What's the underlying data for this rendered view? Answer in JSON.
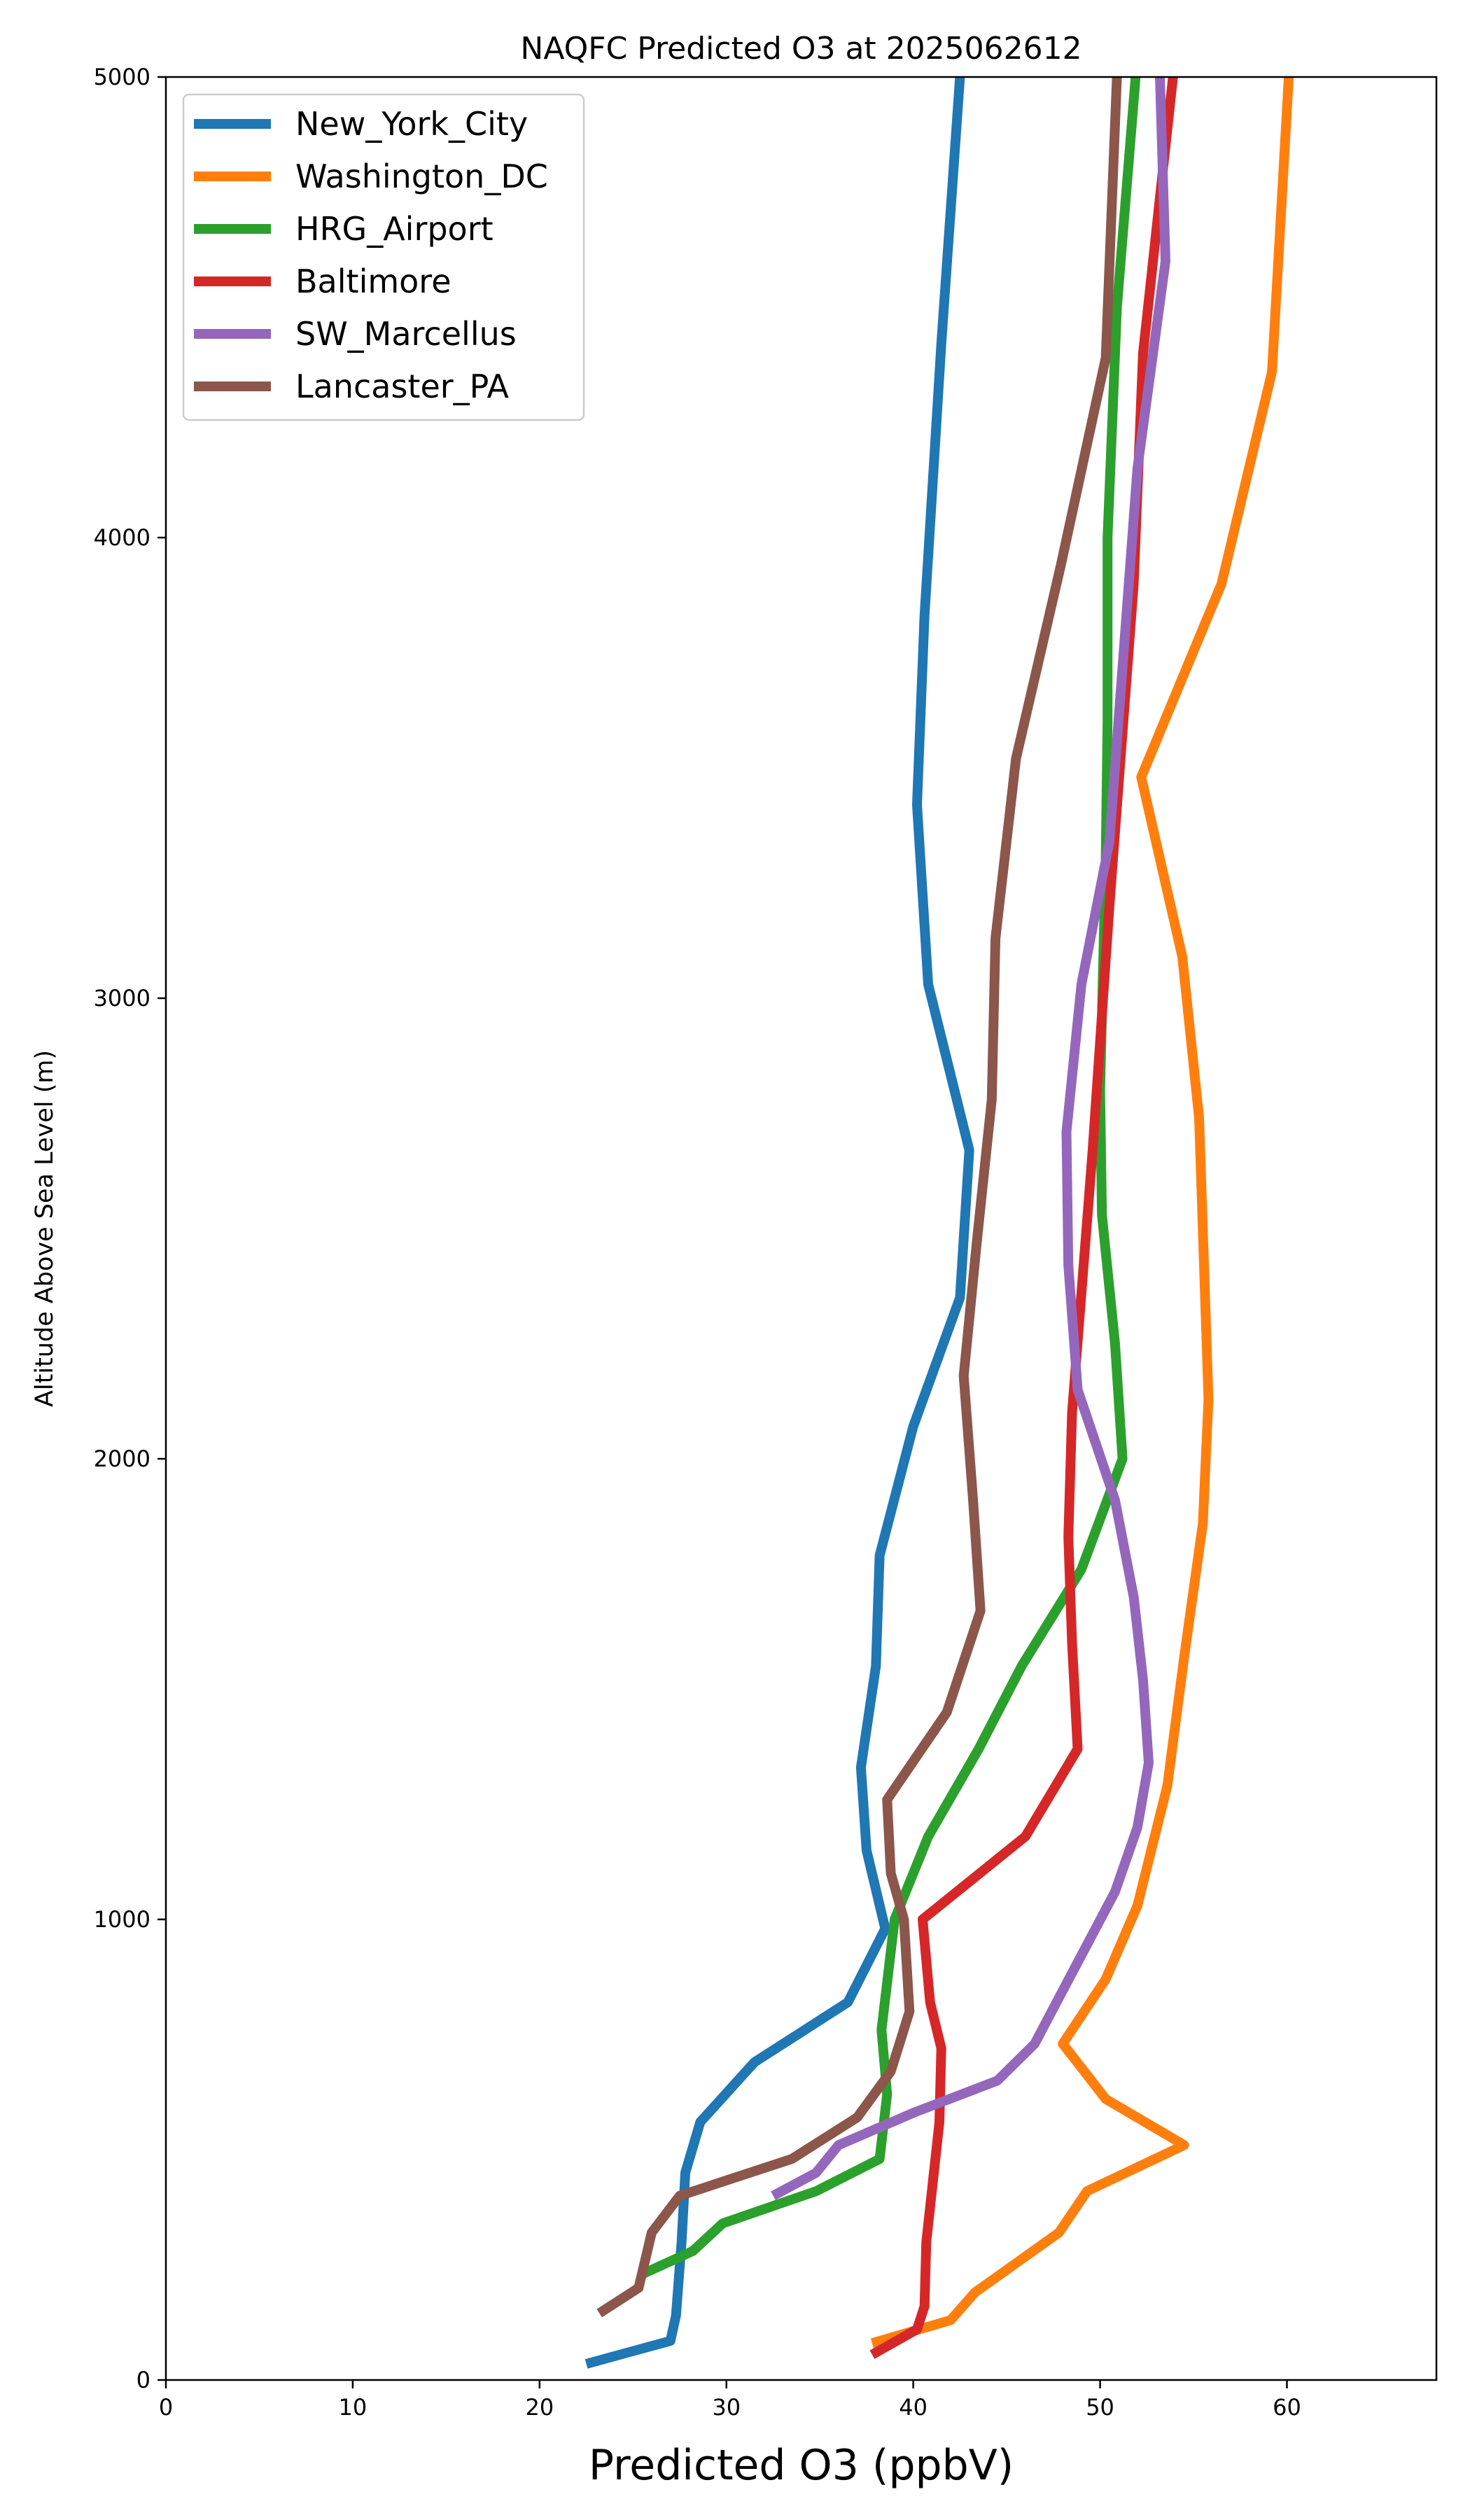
{
  "chart_data": {
    "type": "line",
    "title": "NAQFC Predicted O3 at 2025062612",
    "xlabel": "Predicted O3 (ppbV)",
    "ylabel": "Altitude Above Sea Level (m)",
    "xlim": [
      0,
      68
    ],
    "ylim": [
      0,
      5000
    ],
    "xticks": [
      0,
      10,
      20,
      30,
      40,
      50,
      60
    ],
    "yticks": [
      0,
      1000,
      2000,
      3000,
      4000,
      5000
    ],
    "grid": false,
    "legend_position": "upper-left",
    "series": [
      {
        "name": "New_York_City",
        "color": "#1f77b4",
        "points": [
          [
            22.5,
            35
          ],
          [
            27.0,
            85
          ],
          [
            27.3,
            140
          ],
          [
            27.6,
            300
          ],
          [
            27.8,
            450
          ],
          [
            28.6,
            560
          ],
          [
            31.5,
            690
          ],
          [
            36.5,
            820
          ],
          [
            38.5,
            980
          ],
          [
            37.5,
            1150
          ],
          [
            37.2,
            1330
          ],
          [
            38.0,
            1550
          ],
          [
            38.2,
            1790
          ],
          [
            40.0,
            2070
          ],
          [
            42.5,
            2350
          ],
          [
            43.0,
            2670
          ],
          [
            40.8,
            3030
          ],
          [
            40.2,
            3420
          ],
          [
            40.6,
            3830
          ],
          [
            41.5,
            4420
          ],
          [
            42.5,
            5000
          ]
        ]
      },
      {
        "name": "Washington_DC",
        "color": "#ff7f0e",
        "points": [
          [
            37.8,
            80
          ],
          [
            42.0,
            130
          ],
          [
            43.3,
            190
          ],
          [
            47.8,
            320
          ],
          [
            49.3,
            410
          ],
          [
            54.5,
            510
          ],
          [
            50.3,
            610
          ],
          [
            48.0,
            730
          ],
          [
            50.3,
            870
          ],
          [
            52.0,
            1030
          ],
          [
            53.6,
            1290
          ],
          [
            54.5,
            1570
          ],
          [
            55.5,
            1860
          ],
          [
            55.8,
            2130
          ],
          [
            55.3,
            2740
          ],
          [
            54.4,
            3090
          ],
          [
            52.2,
            3480
          ],
          [
            56.5,
            3900
          ],
          [
            59.2,
            4360
          ],
          [
            60.1,
            5000
          ]
        ]
      },
      {
        "name": "HRG_Airport",
        "color": "#2ca02c",
        "points": [
          [
            25.5,
            230
          ],
          [
            28.2,
            280
          ],
          [
            29.8,
            340
          ],
          [
            34.8,
            410
          ],
          [
            38.2,
            480
          ],
          [
            38.6,
            620
          ],
          [
            38.3,
            760
          ],
          [
            39.0,
            1000
          ],
          [
            40.8,
            1180
          ],
          [
            43.5,
            1370
          ],
          [
            45.8,
            1550
          ],
          [
            49.0,
            1760
          ],
          [
            51.2,
            2000
          ],
          [
            50.8,
            2250
          ],
          [
            50.1,
            2530
          ],
          [
            50.0,
            2800
          ],
          [
            50.3,
            3300
          ],
          [
            50.4,
            3600
          ],
          [
            50.4,
            4000
          ],
          [
            50.9,
            4500
          ],
          [
            51.9,
            5000
          ]
        ]
      },
      {
        "name": "Baltimore",
        "color": "#d62728",
        "points": [
          [
            37.8,
            55
          ],
          [
            40.2,
            110
          ],
          [
            40.6,
            160
          ],
          [
            40.7,
            300
          ],
          [
            41.4,
            560
          ],
          [
            41.5,
            720
          ],
          [
            40.9,
            820
          ],
          [
            40.5,
            1000
          ],
          [
            46.0,
            1180
          ],
          [
            48.8,
            1370
          ],
          [
            48.5,
            1600
          ],
          [
            48.3,
            1830
          ],
          [
            48.5,
            2100
          ],
          [
            49.6,
            2670
          ],
          [
            50.5,
            3200
          ],
          [
            51.8,
            3900
          ],
          [
            52.3,
            4400
          ],
          [
            53.9,
            5000
          ]
        ]
      },
      {
        "name": "SW_Marcellus",
        "color": "#9467bd",
        "points": [
          [
            32.5,
            400
          ],
          [
            34.8,
            450
          ],
          [
            36.0,
            510
          ],
          [
            40.0,
            580
          ],
          [
            44.5,
            650
          ],
          [
            46.5,
            730
          ],
          [
            47.8,
            830
          ],
          [
            50.8,
            1060
          ],
          [
            52.0,
            1200
          ],
          [
            52.6,
            1340
          ],
          [
            52.3,
            1520
          ],
          [
            51.8,
            1700
          ],
          [
            50.8,
            1910
          ],
          [
            48.8,
            2150
          ],
          [
            48.3,
            2420
          ],
          [
            48.2,
            2710
          ],
          [
            49.0,
            3030
          ],
          [
            50.5,
            3340
          ],
          [
            52.0,
            4150
          ],
          [
            53.5,
            4600
          ],
          [
            53.2,
            5000
          ]
        ]
      },
      {
        "name": "Lancaster_PA",
        "color": "#8c564b",
        "points": [
          [
            23.2,
            145
          ],
          [
            25.3,
            200
          ],
          [
            26.0,
            320
          ],
          [
            27.5,
            400
          ],
          [
            33.5,
            480
          ],
          [
            37.0,
            570
          ],
          [
            38.8,
            670
          ],
          [
            39.8,
            800
          ],
          [
            39.5,
            1000
          ],
          [
            38.8,
            1100
          ],
          [
            38.6,
            1260
          ],
          [
            41.8,
            1450
          ],
          [
            43.6,
            1670
          ],
          [
            43.2,
            1910
          ],
          [
            42.7,
            2180
          ],
          [
            43.4,
            2470
          ],
          [
            44.2,
            2780
          ],
          [
            44.4,
            3130
          ],
          [
            45.5,
            3520
          ],
          [
            47.9,
            3940
          ],
          [
            50.3,
            4390
          ],
          [
            50.9,
            5000
          ]
        ]
      }
    ]
  }
}
